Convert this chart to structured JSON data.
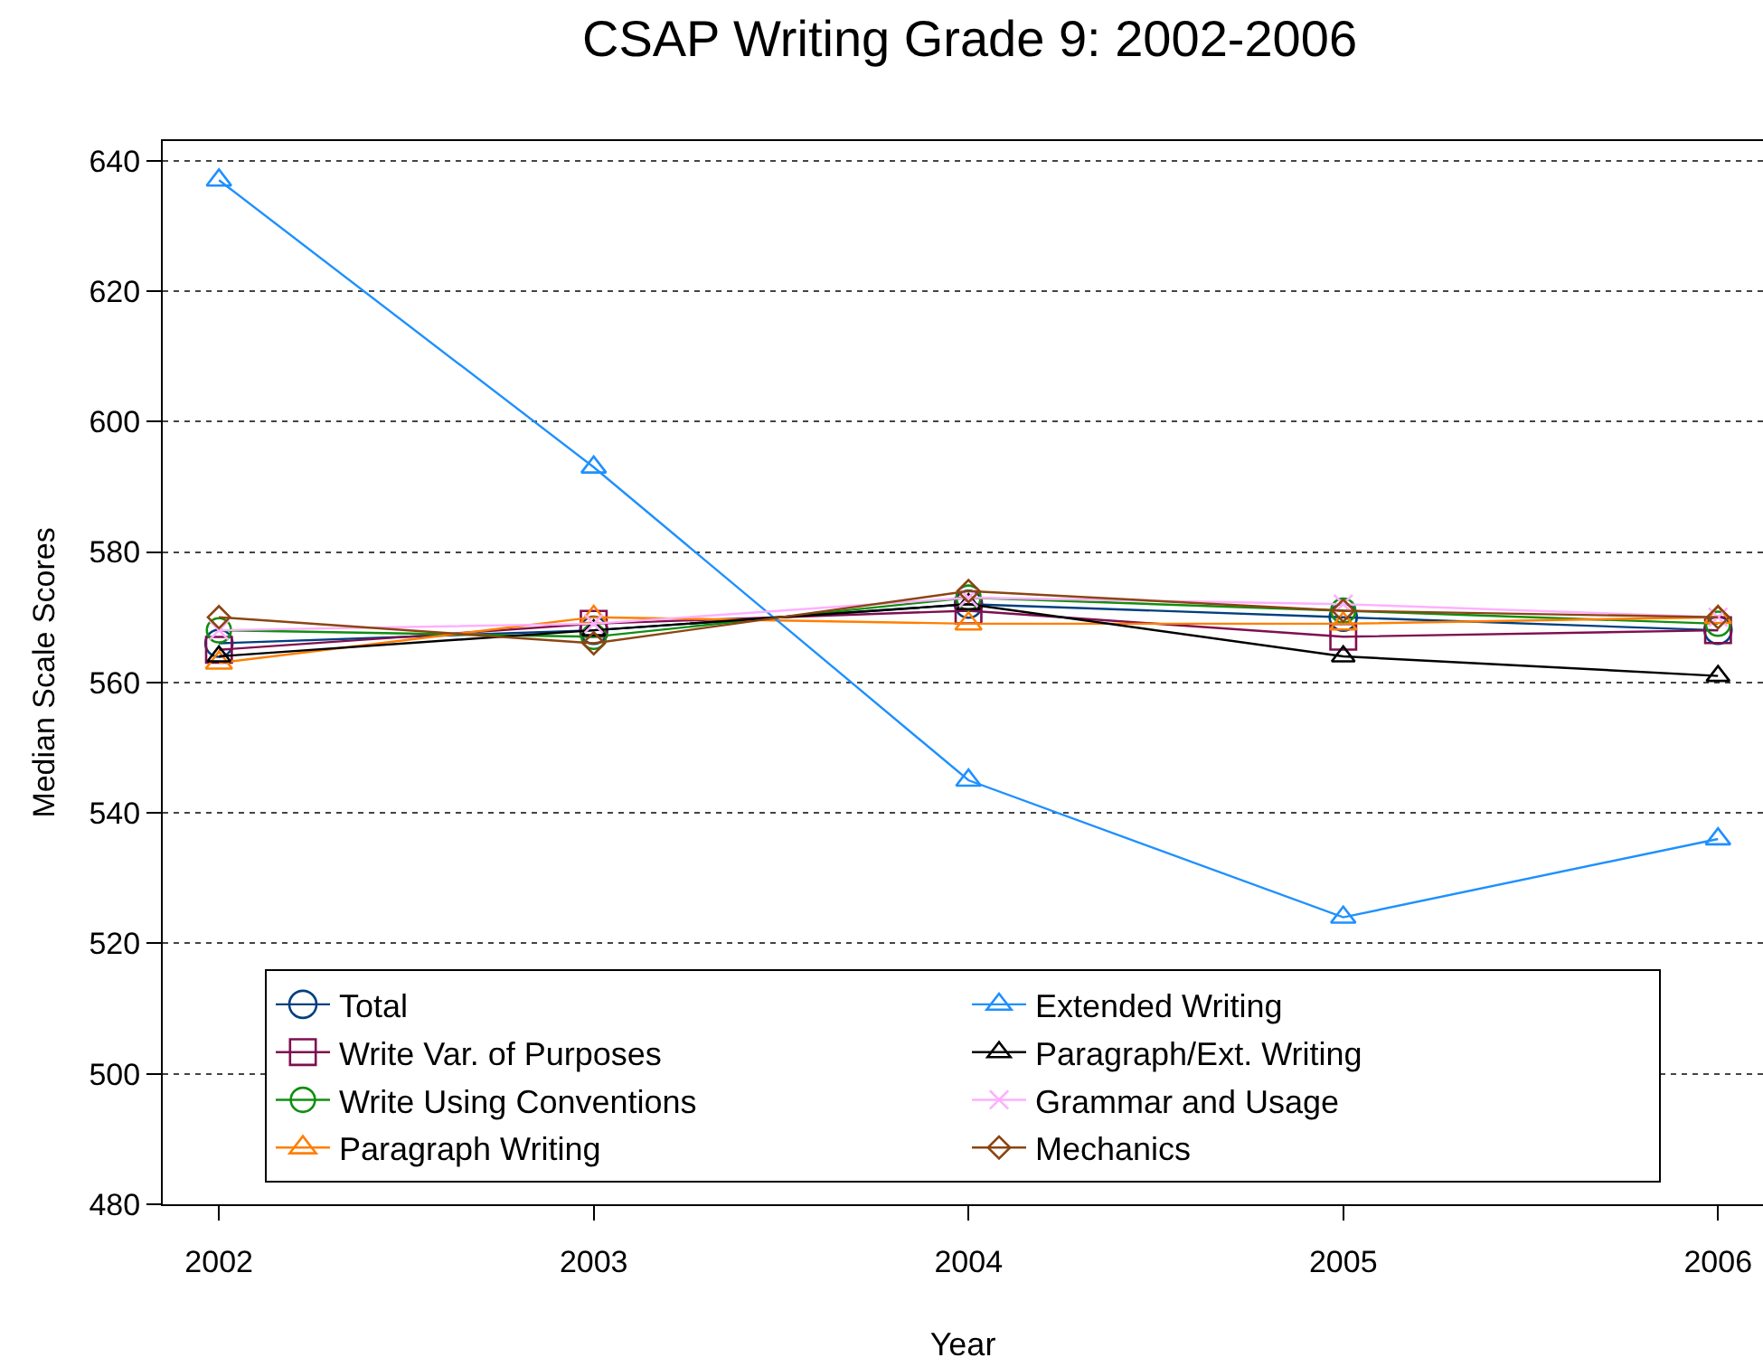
{
  "chart_data": {
    "type": "line",
    "title": "CSAP Writing Grade 9: 2002-2006",
    "xlabel": "Year",
    "ylabel": "Median Scale Scores",
    "x": [
      2002,
      2003,
      2004,
      2005,
      2006
    ],
    "xlim": [
      2001.85,
      2006.12
    ],
    "xticks": [
      2002,
      2003,
      2004,
      2005,
      2006
    ],
    "ylim": [
      480,
      643
    ],
    "yticks": [
      480,
      500,
      520,
      540,
      560,
      580,
      600,
      620,
      640
    ],
    "grid": "y",
    "legend": "bottom",
    "line_style": "solid",
    "series": [
      {
        "name": "Total",
        "color": "#003f7f",
        "marker": "circle",
        "values": [
          566,
          568,
          572,
          570,
          568
        ]
      },
      {
        "name": "Write Var. of Purposes",
        "color": "#7f0f4f",
        "marker": "square",
        "values": [
          565,
          569,
          571,
          567,
          568
        ]
      },
      {
        "name": "Write Using Conventions",
        "color": "#0f8f0f",
        "marker": "circle",
        "values": [
          568,
          567,
          573,
          571,
          569
        ]
      },
      {
        "name": "Paragraph Writing",
        "color": "#ff7f00",
        "marker": "triangle",
        "values": [
          563,
          570,
          569,
          569,
          570
        ]
      },
      {
        "name": "Extended Writing",
        "color": "#1e90ff",
        "marker": "triangle",
        "values": [
          637,
          593,
          545,
          524,
          536
        ]
      },
      {
        "name": "Paragraph/Ext. Writing",
        "color": "#000000",
        "marker": "triangle",
        "values": [
          564,
          568,
          572,
          564,
          561
        ]
      },
      {
        "name": "Grammar and Usage",
        "color": "#ffb0ff",
        "marker": "cross",
        "values": [
          568,
          569,
          573,
          572,
          570
        ]
      },
      {
        "name": "Mechanics",
        "color": "#8b4513",
        "marker": "diamond",
        "values": [
          570,
          566,
          574,
          571,
          570
        ]
      }
    ]
  }
}
